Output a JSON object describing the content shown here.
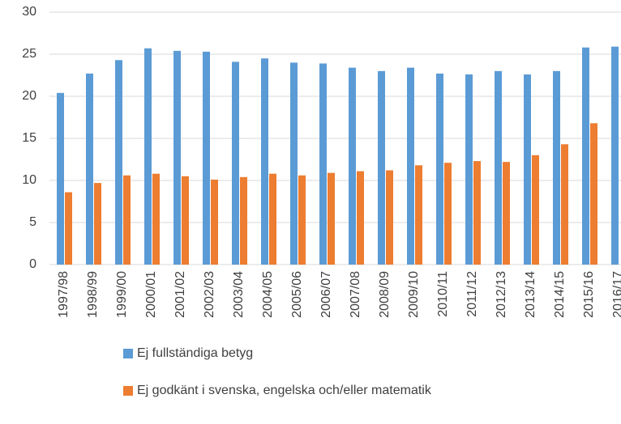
{
  "chart_data": {
    "type": "bar",
    "categories": [
      "1997/98",
      "1998/99",
      "1999/00",
      "2000/01",
      "2001/02",
      "2002/03",
      "2003/04",
      "2004/05",
      "2005/06",
      "2006/07",
      "2007/08",
      "2008/09",
      "2009/10",
      "2010/11",
      "2011/12",
      "2012/13",
      "2013/14",
      "2014/15",
      "2015/16",
      "2016/17"
    ],
    "series": [
      {
        "name": "Ej fullständiga betyg",
        "color": "#5b9bd5",
        "values": [
          20.4,
          22.7,
          24.3,
          25.7,
          25.4,
          25.3,
          24.1,
          24.5,
          24.0,
          23.9,
          23.4,
          23.0,
          23.4,
          22.7,
          22.6,
          23.0,
          22.6,
          23.0,
          25.8,
          25.9
        ]
      },
      {
        "name": "Ej godkänt i svenska, engelska och/eller matematik",
        "color": "#ed7d31",
        "values": [
          8.6,
          9.7,
          10.6,
          10.8,
          10.5,
          10.1,
          10.4,
          10.8,
          10.6,
          10.9,
          11.1,
          11.2,
          11.8,
          12.1,
          12.3,
          12.2,
          13.0,
          14.3,
          16.8,
          null
        ]
      }
    ],
    "ylim": [
      0,
      30
    ],
    "yticks": [
      0,
      5,
      10,
      15,
      20,
      25,
      30
    ],
    "grid": true
  }
}
